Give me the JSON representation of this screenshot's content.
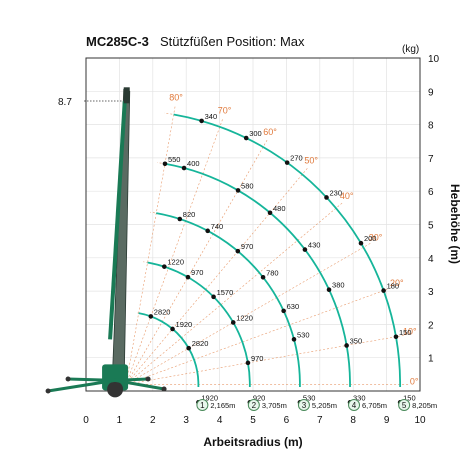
{
  "title": {
    "model": "MC285C-3",
    "subtitle": "Stützfüßen Position: Max"
  },
  "axes": {
    "x_label": "Arbeitsradius (m)",
    "y_label": "Hebehöhe (m)",
    "unit_label": "(kg)",
    "x_ticks": [
      "0",
      "1",
      "2",
      "3",
      "4",
      "5",
      "6",
      "7",
      "8",
      "9",
      "10"
    ],
    "y_ticks": [
      "1",
      "2",
      "3",
      "4",
      "5",
      "6",
      "7",
      "8",
      "9",
      "10"
    ],
    "max_height_label": "8.7"
  },
  "colors": {
    "boom_green": "#1a7a55",
    "curve_teal": "#16b59a",
    "angle_orange": "#e0793b",
    "grid": "#e3e3e3"
  },
  "boom_angles": [
    "80°",
    "70°",
    "60°",
    "50°",
    "40°",
    "30°",
    "20°",
    "10°",
    "0°"
  ],
  "boom_sections": [
    {
      "number": "1",
      "reach": "2,165m"
    },
    {
      "number": "2",
      "reach": "3,705m"
    },
    {
      "number": "3",
      "reach": "5,205m"
    },
    {
      "number": "4",
      "reach": "6,705m"
    },
    {
      "number": "5",
      "reach": "8,205m"
    }
  ],
  "chart_data": {
    "type": "load-chart",
    "x_range": [
      0,
      10
    ],
    "y_range": [
      0,
      10
    ],
    "pivot": {
      "x": 1.2,
      "y": 0.2
    },
    "sections": [
      {
        "section": "1",
        "reach_m": 2.165,
        "loads": [
          {
            "angle": 0,
            "kg": "1920"
          },
          {
            "angle": 30,
            "kg": "2820"
          },
          {
            "angle": 50,
            "kg": "1920"
          },
          {
            "angle": 70,
            "kg": "2820"
          }
        ]
      },
      {
        "section": "2",
        "reach_m": 3.705,
        "loads": [
          {
            "angle": 0,
            "kg": "920"
          },
          {
            "angle": 10,
            "kg": "970"
          },
          {
            "angle": 30,
            "kg": "1220"
          },
          {
            "angle": 45,
            "kg": "1570"
          },
          {
            "angle": 60,
            "kg": "970"
          },
          {
            "angle": 72,
            "kg": "1220"
          }
        ]
      },
      {
        "section": "3",
        "reach_m": 5.205,
        "loads": [
          {
            "angle": 0,
            "kg": "530"
          },
          {
            "angle": 15,
            "kg": "530"
          },
          {
            "angle": 25,
            "kg": "630"
          },
          {
            "angle": 38,
            "kg": "780"
          },
          {
            "angle": 50,
            "kg": "970"
          },
          {
            "angle": 62,
            "kg": "740"
          },
          {
            "angle": 72,
            "kg": "820"
          }
        ]
      },
      {
        "section": "4",
        "reach_m": 6.705,
        "loads": [
          {
            "angle": 0,
            "kg": "330"
          },
          {
            "angle": 10,
            "kg": "350"
          },
          {
            "angle": 25,
            "kg": "380"
          },
          {
            "angle": 37,
            "kg": "430"
          },
          {
            "angle": 50,
            "kg": "480"
          },
          {
            "angle": 60,
            "kg": "580"
          },
          {
            "angle": 75,
            "kg": "400"
          },
          {
            "angle": 80,
            "kg": "550"
          }
        ]
      },
      {
        "section": "5",
        "reach_m": 8.205,
        "loads": [
          {
            "angle": 0,
            "kg": "150"
          },
          {
            "angle": 10,
            "kg": "150"
          },
          {
            "angle": 20,
            "kg": "180"
          },
          {
            "angle": 31,
            "kg": "200"
          },
          {
            "angle": 43,
            "kg": "230"
          },
          {
            "angle": 54,
            "kg": "270"
          },
          {
            "angle": 64,
            "kg": "300"
          },
          {
            "angle": 74,
            "kg": "340"
          }
        ]
      }
    ]
  }
}
